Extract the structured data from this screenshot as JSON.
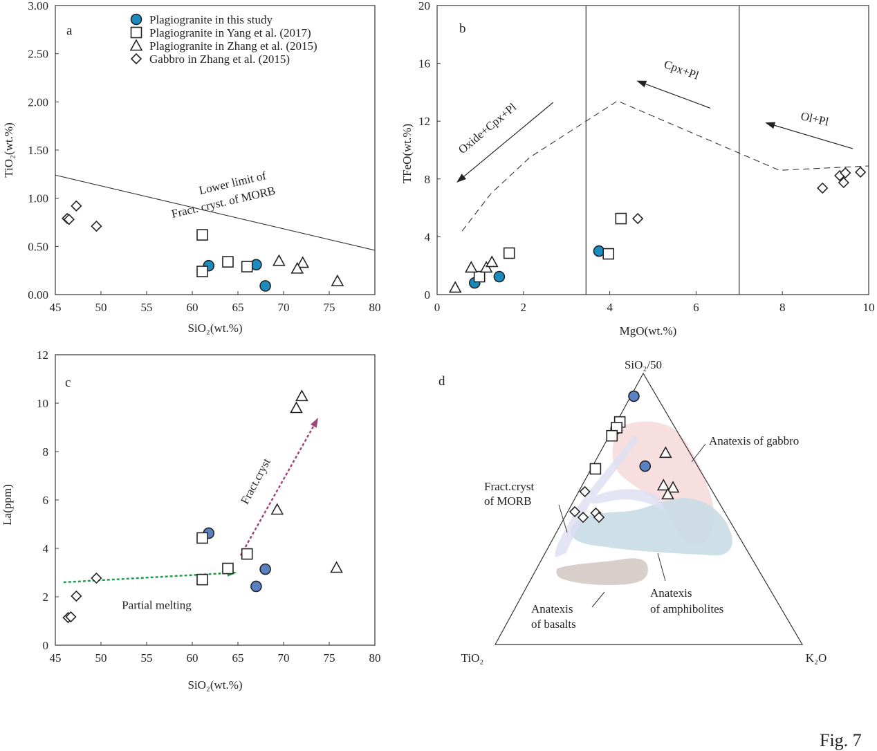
{
  "figure_label": "Fig. 7",
  "legend": [
    {
      "marker": "circle",
      "label": "Plagiogranite in this study"
    },
    {
      "marker": "square",
      "label": "Plagiogranite in Yang  et al. (2017)"
    },
    {
      "marker": "triangle",
      "label": "Plagiogranite in Zhang  et al. (2015)"
    },
    {
      "marker": "diamond",
      "label": "Gabbro in Zhang  et al. (2015)"
    }
  ],
  "colors": {
    "circle_ab": "#1a8cc0",
    "circle_cd": "#5a80c4",
    "green_arrow": "#1e9e4a",
    "purple_arrow": "#a0457e",
    "gabbro_field": "#f7d9d9",
    "morb_field": "#dcdff2",
    "amphibolite_field": "#c9dbe6",
    "basalt_field": "#d9cfca"
  },
  "chart_data": [
    {
      "id": "a",
      "type": "scatter",
      "panel_label": "a",
      "xlabel": "SiO₂(wt.%)",
      "ylabel": "TiO₂(wt.%)",
      "xlim": [
        45,
        80
      ],
      "ylim": [
        0,
        3
      ],
      "xticks": [
        "45",
        "50",
        "55",
        "60",
        "65",
        "70",
        "75",
        "80"
      ],
      "yticks": [
        "0.00",
        "0.50",
        "1.00",
        "1.50",
        "2.00",
        "2.50",
        "3.00"
      ],
      "series": [
        {
          "name": "Plagiogranite in this study",
          "marker": "circle",
          "points": [
            [
              61.8,
              0.3
            ],
            [
              67.0,
              0.31
            ],
            [
              68.0,
              0.09
            ]
          ]
        },
        {
          "name": "Plagiogranite in Yang et al. (2017)",
          "marker": "square",
          "points": [
            [
              61.1,
              0.62
            ],
            [
              61.1,
              0.24
            ],
            [
              63.9,
              0.34
            ],
            [
              66.0,
              0.29
            ]
          ]
        },
        {
          "name": "Plagiogranite in Zhang et al. (2015)",
          "marker": "triangle",
          "points": [
            [
              69.5,
              0.35
            ],
            [
              72.1,
              0.33
            ],
            [
              71.5,
              0.27
            ],
            [
              75.9,
              0.14
            ]
          ]
        },
        {
          "name": "Gabbro in Zhang et al. (2015)",
          "marker": "diamond",
          "points": [
            [
              46.3,
              0.79
            ],
            [
              46.5,
              0.78
            ],
            [
              47.3,
              0.92
            ],
            [
              49.5,
              0.71
            ]
          ]
        }
      ],
      "lines": [
        {
          "name": "lower-limit-line",
          "style": "solid",
          "points": [
            [
              45,
              1.24
            ],
            [
              80,
              0.46
            ]
          ]
        }
      ],
      "arrows": [],
      "vlines": [],
      "annotations": [
        {
          "text": "Lower limit of",
          "at": [
            64.5,
            1.12
          ]
        },
        {
          "text": "Fract. cryst. of MORB",
          "at": [
            63.5,
            0.92
          ]
        }
      ]
    },
    {
      "id": "b",
      "type": "scatter",
      "panel_label": "b",
      "xlabel": "MgO(wt.%)",
      "ylabel": "TFeO(wt.%)",
      "xlim": [
        0,
        10
      ],
      "ylim": [
        0,
        20
      ],
      "xticks": [
        "0",
        "2",
        "4",
        "6",
        "8",
        "10"
      ],
      "yticks": [
        "0",
        "4",
        "8",
        "12",
        "16",
        "20"
      ],
      "series": [
        {
          "name": "Plagiogranite in this study",
          "marker": "circle",
          "points": [
            [
              0.87,
              0.81
            ],
            [
              1.44,
              1.24
            ],
            [
              3.75,
              3.01
            ]
          ]
        },
        {
          "name": "Plagiogranite in Yang et al. (2017)",
          "marker": "square",
          "points": [
            [
              0.98,
              1.24
            ],
            [
              1.67,
              2.87
            ],
            [
              3.97,
              2.82
            ],
            [
              4.26,
              5.26
            ]
          ]
        },
        {
          "name": "Plagiogranite in Zhang et al. (2015)",
          "marker": "triangle",
          "points": [
            [
              0.42,
              0.48
            ],
            [
              0.79,
              1.87
            ],
            [
              1.14,
              1.87
            ],
            [
              1.27,
              2.25
            ]
          ]
        },
        {
          "name": "Gabbro in Zhang et al. (2015)",
          "marker": "diamond",
          "points": [
            [
              4.65,
              5.26
            ],
            [
              8.93,
              7.37
            ],
            [
              9.33,
              8.23
            ],
            [
              9.46,
              8.42
            ],
            [
              9.42,
              7.75
            ],
            [
              9.81,
              8.47
            ]
          ]
        }
      ],
      "lines": [
        {
          "name": "trend-dashed-line",
          "style": "dashed",
          "points": [
            [
              0.58,
              4.4
            ],
            [
              1.25,
              7.0
            ],
            [
              2.15,
              9.5
            ],
            [
              4.18,
              13.4
            ],
            [
              7.93,
              8.6
            ],
            [
              10,
              8.9
            ]
          ]
        }
      ],
      "vlines": [
        3.45,
        7.0
      ],
      "arrows": [
        {
          "name": "oxide-cpx-pl-arrow",
          "from": [
            2.69,
            13.3
          ],
          "to": [
            0.45,
            7.75
          ],
          "color": "#222"
        },
        {
          "name": "cpx-pl-arrow",
          "from": [
            6.33,
            12.9
          ],
          "to": [
            4.62,
            14.8
          ],
          "color": "#222"
        },
        {
          "name": "ol-pl-arrow",
          "from": [
            9.63,
            10.1
          ],
          "to": [
            7.6,
            11.9
          ],
          "color": "#222"
        }
      ],
      "annotations": [
        {
          "text": "Oxide+Cpx+Pl",
          "at": [
            1.22,
            11.3
          ]
        },
        {
          "text": "Cpx+Pl",
          "at": [
            5.63,
            15.3
          ]
        },
        {
          "text": "Ol+Pl",
          "at": [
            8.73,
            11.9
          ]
        }
      ]
    },
    {
      "id": "c",
      "type": "scatter",
      "panel_label": "c",
      "xlabel": "SiO₂(wt.%)",
      "ylabel": "La(ppm)",
      "xlim": [
        45,
        80
      ],
      "ylim": [
        0,
        12
      ],
      "xticks": [
        "45",
        "50",
        "55",
        "60",
        "65",
        "70",
        "75",
        "80"
      ],
      "yticks": [
        "0",
        "2",
        "4",
        "6",
        "8",
        "10",
        "12"
      ],
      "series": [
        {
          "name": "Plagiogranite in this study",
          "marker": "circle",
          "points": [
            [
              61.8,
              4.63
            ],
            [
              67.0,
              2.43
            ],
            [
              68.0,
              3.14
            ]
          ]
        },
        {
          "name": "Plagiogranite in Yang et al. (2017)",
          "marker": "square",
          "points": [
            [
              61.1,
              4.43
            ],
            [
              61.1,
              2.71
            ],
            [
              63.9,
              3.17
            ],
            [
              66.0,
              3.77
            ]
          ]
        },
        {
          "name": "Plagiogranite in Zhang et al. (2015)",
          "marker": "triangle",
          "points": [
            [
              71.4,
              9.8
            ],
            [
              72.0,
              10.29
            ],
            [
              69.3,
              5.6
            ],
            [
              75.8,
              3.2
            ]
          ]
        },
        {
          "name": "Gabbro in Zhang et al. (2015)",
          "marker": "diamond",
          "points": [
            [
              46.4,
              1.14
            ],
            [
              46.7,
              1.17
            ],
            [
              47.3,
              2.03
            ],
            [
              49.5,
              2.77
            ]
          ]
        }
      ],
      "lines": [],
      "vlines": [],
      "arrows": [
        {
          "name": "partial-melting-arrow",
          "from": [
            45.9,
            2.6
          ],
          "to": [
            64.9,
            3.0
          ],
          "color": "#1e9e4a",
          "dashed": true
        },
        {
          "name": "fract-cryst-arrow",
          "from": [
            65.3,
            3.71
          ],
          "to": [
            73.8,
            9.4
          ],
          "color": "#a0457e",
          "dashed": true
        }
      ],
      "annotations": [
        {
          "text": "Partial melting",
          "at": [
            56.1,
            1.5
          ]
        },
        {
          "text": "Fract.cryst",
          "at": [
            67.3,
            6.7
          ]
        }
      ]
    },
    {
      "id": "d",
      "type": "ternary",
      "panel_label": "d",
      "apex_labels": {
        "top": "SiO₂/50",
        "left": "TiO₂",
        "right": "K₂O"
      },
      "components": [
        "SiO2/50",
        "TiO2",
        "K2O"
      ],
      "series": [
        {
          "name": "Plagiogranite in this study",
          "marker": "circle",
          "points": [
            [
              0.916,
              0.074,
              0.01
            ],
            [
              0.796,
              0.194,
              0.01
            ],
            [
              0.658,
              0.171,
              0.171
            ]
          ]
        },
        {
          "name": "Plagiogranite in Yang et al. (2017)",
          "marker": "square",
          "points": [
            [
              0.821,
              0.169,
              0.01
            ],
            [
              0.8,
              0.19,
              0.01
            ],
            [
              0.77,
              0.221,
              0.009
            ],
            [
              0.648,
              0.338,
              0.014
            ]
          ]
        },
        {
          "name": "Plagiogranite in Zhang et al. (2015)",
          "marker": "triangle",
          "points": [
            [
              0.707,
              0.079,
              0.214
            ],
            [
              0.587,
              0.148,
              0.265
            ],
            [
              0.579,
              0.121,
              0.3
            ],
            [
              0.554,
              0.151,
              0.295
            ]
          ]
        },
        {
          "name": "Gabbro in Zhang et al. (2015)",
          "marker": "diamond",
          "points": [
            [
              0.564,
              0.416,
              0.02
            ],
            [
              0.49,
              0.487,
              0.023
            ],
            [
              0.469,
              0.471,
              0.06
            ],
            [
              0.485,
              0.421,
              0.094
            ],
            [
              0.469,
              0.419,
              0.112
            ]
          ]
        }
      ],
      "fields": [
        {
          "name": "Anatexis of gabbro",
          "lines": [
            "Anatexis of gabbro"
          ]
        },
        {
          "name": "Fract.cryst of MORB",
          "lines": [
            "Fract.cryst",
            "of MORB"
          ]
        },
        {
          "name": "Anatexis of amphibolites",
          "lines": [
            "Anatexis",
            "of amphibolites"
          ]
        },
        {
          "name": "Anatexis of basalts",
          "lines": [
            "Anatexis",
            "of basalts"
          ]
        }
      ]
    }
  ]
}
